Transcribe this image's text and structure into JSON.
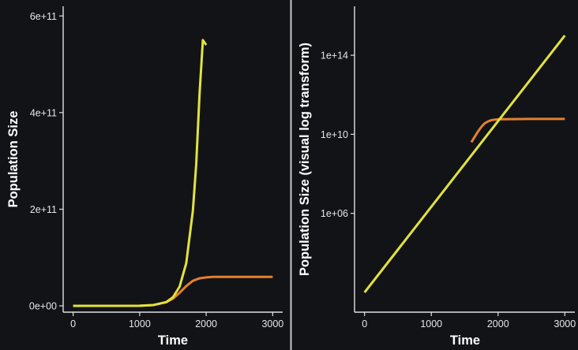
{
  "colors": {
    "background": "#121317",
    "divider": "#c8c8c8",
    "axis": "#e0e0e0",
    "text": "#ffffff"
  },
  "chart_data": [
    {
      "type": "line",
      "title": "",
      "xlabel": "Time",
      "ylabel": "Population Size",
      "xlim": [
        -150,
        3150
      ],
      "ylim": [
        -13000000000.0,
        620000000000.0
      ],
      "y_scale": "linear",
      "grid": false,
      "x_ticks": [
        0,
        1000,
        2000,
        3000
      ],
      "x_tick_labels": [
        "0",
        "1000",
        "2000",
        "3000"
      ],
      "y_ticks": [
        0,
        200000000000.0,
        400000000000.0,
        600000000000.0
      ],
      "y_tick_labels": [
        "0e+00",
        "2e+11",
        "4e+11",
        "6e+11"
      ],
      "series": [
        {
          "color": "#e2e33c",
          "x": [
            0,
            1000,
            1200,
            1400,
            1500,
            1600,
            1700,
            1800,
            1850,
            1900,
            1950,
            2000
          ],
          "y": [
            0.1,
            320000000.0,
            1600000000.0,
            7900000000.0,
            17800000000.0,
            39600000000.0,
            88200000000.0,
            197000000000.0,
            293000000000.0,
            438000000000.0,
            550000000000.0,
            540000000000.0
          ]
        },
        {
          "color": "#e3812f",
          "x": [
            0,
            1000,
            1200,
            1400,
            1500,
            1600,
            1700,
            1800,
            1900,
            2000,
            2100,
            2200,
            2500,
            3000
          ],
          "y": [
            0.1,
            320000000.0,
            1600000000.0,
            7500000000.0,
            15000000000.0,
            27000000000.0,
            41000000000.0,
            52000000000.0,
            57000000000.0,
            59000000000.0,
            60000000000.0,
            60000000000.0,
            60000000000.0,
            60000000000.0
          ]
        }
      ]
    },
    {
      "type": "line",
      "title": "",
      "xlabel": "Time",
      "ylabel": "Population Size (visual log transform)",
      "xlim": [
        -150,
        3150
      ],
      "ylim": [
        10,
        3e+16
      ],
      "y_scale": "log",
      "grid": false,
      "x_ticks": [
        0,
        1000,
        2000,
        3000
      ],
      "x_tick_labels": [
        "0",
        "1000",
        "2000",
        "3000"
      ],
      "y_ticks": [
        1000000.0,
        10000000000.0,
        100000000000000.0
      ],
      "y_tick_labels": [
        "1e+06",
        "1e+10",
        "1e+14"
      ],
      "series": [
        {
          "color": "#e2e33c",
          "x": [
            0,
            3000
          ],
          "y": [
            100,
            1000000000000000.0
          ]
        },
        {
          "color": "#e3812f",
          "x": [
            1600,
            1700,
            1750,
            1800,
            1850,
            1900,
            2000,
            2500,
            3000
          ],
          "y": [
            3960000000.0,
            14000000000.0,
            24000000000.0,
            36000000000.0,
            45000000000.0,
            52000000000.0,
            58000000000.0,
            60000000000.0,
            60000000000.0
          ]
        }
      ]
    }
  ]
}
